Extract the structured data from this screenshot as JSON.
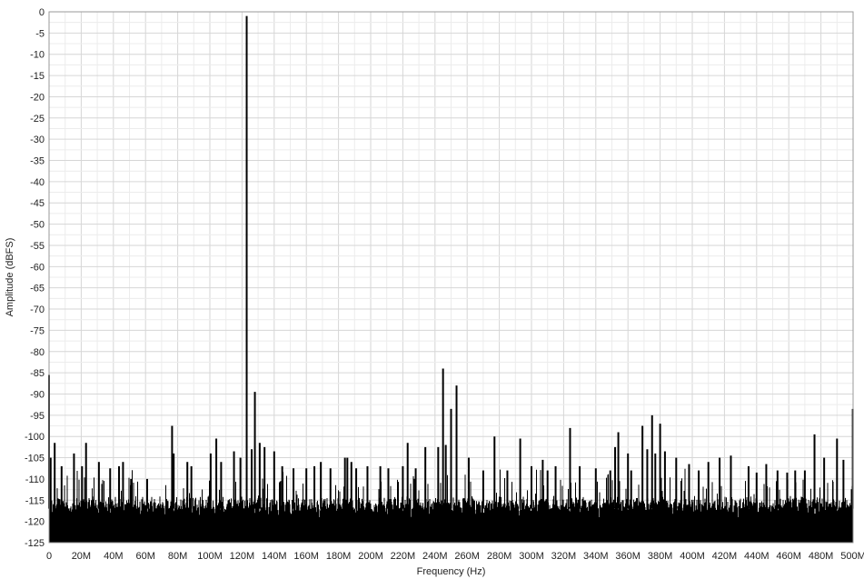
{
  "chart_data": {
    "type": "line",
    "title": "",
    "xlabel": "Frequency (Hz)",
    "ylabel": "Amplitude (dBFS)",
    "xlim": [
      0,
      500000000
    ],
    "ylim": [
      -125,
      0
    ],
    "grid": true,
    "legend": "none",
    "x_ticks": [
      0,
      20000000,
      40000000,
      60000000,
      80000000,
      100000000,
      120000000,
      140000000,
      160000000,
      180000000,
      200000000,
      220000000,
      240000000,
      260000000,
      280000000,
      300000000,
      320000000,
      340000000,
      360000000,
      380000000,
      400000000,
      420000000,
      440000000,
      460000000,
      480000000,
      500000000
    ],
    "x_tick_labels": [
      "0",
      "20M",
      "40M",
      "60M",
      "80M",
      "100M",
      "120M",
      "140M",
      "160M",
      "180M",
      "200M",
      "220M",
      "240M",
      "260M",
      "280M",
      "300M",
      "320M",
      "340M",
      "360M",
      "380M",
      "400M",
      "420M",
      "440M",
      "460M",
      "480M",
      "500M"
    ],
    "y_ticks": [
      0,
      -5,
      -10,
      -15,
      -20,
      -25,
      -30,
      -35,
      -40,
      -45,
      -50,
      -55,
      -60,
      -65,
      -70,
      -75,
      -80,
      -85,
      -90,
      -95,
      -100,
      -105,
      -110,
      -115,
      -120,
      -125
    ],
    "y_tick_labels": [
      "0",
      "-5",
      "-10",
      "-15",
      "-20",
      "-25",
      "-30",
      "-35",
      "-40",
      "-45",
      "-50",
      "-55",
      "-60",
      "-65",
      "-70",
      "-75",
      "-80",
      "-85",
      "-90",
      "-95",
      "-100",
      "-105",
      "-110",
      "-115",
      "-120",
      "-125"
    ],
    "noise_floor": {
      "low": -125,
      "high": -114
    },
    "series": [
      {
        "color": "#000000",
        "x": [
          0,
          1000000,
          3500000,
          7800000,
          15500000,
          20500000,
          23000000,
          31000000,
          38000000,
          43500000,
          46000000,
          51000000,
          61000000,
          76500000,
          77500000,
          86000000,
          88500000,
          100500000,
          104000000,
          107000000,
          115000000,
          119000000,
          122900000,
          126000000,
          128000000,
          131000000,
          134000000,
          140000000,
          145000000,
          152000000,
          160000000,
          165000000,
          169000000,
          175000000,
          184000000,
          185500000,
          188000000,
          191000000,
          198000000,
          206000000,
          211000000,
          220000000,
          223000000,
          228000000,
          234000000,
          242000000,
          245000000,
          246700000,
          250000000,
          253400000,
          261000000,
          270000000,
          277000000,
          285000000,
          293000000,
          300000000,
          307000000,
          310000000,
          315000000,
          324000000,
          330000000,
          340000000,
          349000000,
          352000000,
          354000000,
          360000000,
          362000000,
          369000000,
          372000000,
          375000000,
          377000000,
          380000000,
          383000000,
          390000000,
          398000000,
          404000000,
          410000000,
          417000000,
          424000000,
          435000000,
          440000000,
          446000000,
          453000000,
          459000000,
          464000000,
          470000000,
          476000000,
          482000000,
          490000000,
          494000000,
          499800000
        ],
        "y": [
          -85.5,
          -105,
          -101.5,
          -107,
          -104,
          -107,
          -101.5,
          -106,
          -107.5,
          -107,
          -106,
          -110,
          -110,
          -97.5,
          -104,
          -106,
          -107,
          -104,
          -100.5,
          -106,
          -103.5,
          -105,
          -1,
          -103,
          -89.5,
          -101.5,
          -102.5,
          -103.5,
          -107,
          -107.5,
          -107.5,
          -107,
          -106,
          -107.5,
          -105,
          -105,
          -106,
          -107.5,
          -107,
          -107,
          -107.5,
          -107,
          -101.5,
          -107.5,
          -102.5,
          -102.5,
          -84,
          -102,
          -93.5,
          -88,
          -105,
          -108,
          -100,
          -108,
          -100.5,
          -107,
          -105.5,
          -108,
          -107,
          -98,
          -107,
          -107.5,
          -108,
          -102.5,
          -99,
          -104,
          -108,
          -97.5,
          -103,
          -95,
          -104,
          -97,
          -103.5,
          -105,
          -106.5,
          -108,
          -106,
          -105,
          -104.5,
          -107,
          -108.5,
          -106.5,
          -108,
          -108.5,
          -108,
          -108,
          -99.5,
          -105,
          -100.5,
          -105.5,
          -93.5
        ]
      }
    ]
  }
}
